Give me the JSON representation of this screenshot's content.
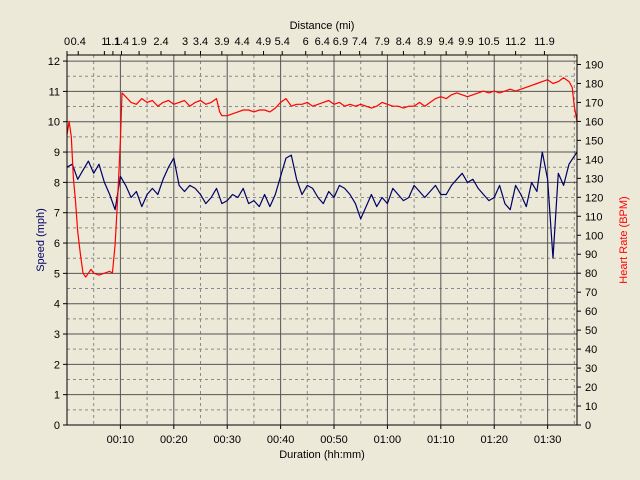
{
  "chart_data": {
    "type": "line",
    "xlabel": "Duration (hh:mm)",
    "x2label": "Distance (mi)",
    "ylabel": "Speed (mph)",
    "y2label": "Heart Rate (BPM)",
    "xlim_minutes": [
      0,
      95.5
    ],
    "ylim": [
      0,
      12.2
    ],
    "y2lim": [
      0,
      195
    ],
    "grid": true,
    "x_ticks": [
      {
        "min": 10,
        "label": "00:10"
      },
      {
        "min": 20,
        "label": "00:20"
      },
      {
        "min": 30,
        "label": "00:30"
      },
      {
        "min": 40,
        "label": "00:40"
      },
      {
        "min": 50,
        "label": "00:50"
      },
      {
        "min": 60,
        "label": "01:00"
      },
      {
        "min": 70,
        "label": "01:10"
      },
      {
        "min": 80,
        "label": "01:20"
      },
      {
        "min": 90,
        "label": "01:30"
      }
    ],
    "distance_ticks": [
      {
        "min": 0,
        "label": "0"
      },
      {
        "min": 2.1,
        "label": "0.4"
      },
      {
        "min": 7,
        "label": "1"
      },
      {
        "min": 8.6,
        "label": "1.1"
      },
      {
        "min": 10.2,
        "label": "1.4"
      },
      {
        "min": 13.5,
        "label": "1.9"
      },
      {
        "min": 17.6,
        "label": "2.4"
      },
      {
        "min": 22.1,
        "label": "3"
      },
      {
        "min": 25,
        "label": "3.4"
      },
      {
        "min": 29,
        "label": "3.9"
      },
      {
        "min": 32.8,
        "label": "4.4"
      },
      {
        "min": 36.8,
        "label": "4.9"
      },
      {
        "min": 40.3,
        "label": "5.4"
      },
      {
        "min": 44.7,
        "label": "6"
      },
      {
        "min": 47.8,
        "label": "6.4"
      },
      {
        "min": 51.2,
        "label": "6.9"
      },
      {
        "min": 54.8,
        "label": "7.4"
      },
      {
        "min": 59,
        "label": "7.9"
      },
      {
        "min": 63,
        "label": "8.4"
      },
      {
        "min": 67,
        "label": "8.9"
      },
      {
        "min": 71,
        "label": "9.4"
      },
      {
        "min": 74.7,
        "label": "9.9"
      },
      {
        "min": 79,
        "label": "10.5"
      },
      {
        "min": 84,
        "label": "11.2"
      },
      {
        "min": 89.4,
        "label": "11.9"
      }
    ],
    "y_ticks": [
      "0",
      "1",
      "2",
      "3",
      "4",
      "5",
      "6",
      "7",
      "8",
      "9",
      "10",
      "11",
      "12"
    ],
    "y2_ticks": [
      "0",
      "10",
      "20",
      "30",
      "40",
      "50",
      "60",
      "70",
      "80",
      "90",
      "100",
      "110",
      "120",
      "130",
      "140",
      "150",
      "160",
      "170",
      "180",
      "190"
    ],
    "series": [
      {
        "color": "#000066",
        "axis": "left",
        "points": [
          [
            0,
            8.5
          ],
          [
            1,
            8.6
          ],
          [
            2,
            8.1
          ],
          [
            3,
            8.4
          ],
          [
            4,
            8.7
          ],
          [
            5,
            8.3
          ],
          [
            6,
            8.6
          ],
          [
            7,
            8.0
          ],
          [
            8,
            7.6
          ],
          [
            9,
            7.1
          ],
          [
            10,
            8.2
          ],
          [
            11,
            7.9
          ],
          [
            12,
            7.5
          ],
          [
            13,
            7.7
          ],
          [
            14,
            7.2
          ],
          [
            15,
            7.6
          ],
          [
            16,
            7.8
          ],
          [
            17,
            7.6
          ],
          [
            18,
            8.1
          ],
          [
            19,
            8.5
          ],
          [
            20,
            8.8
          ],
          [
            21,
            7.9
          ],
          [
            22,
            7.7
          ],
          [
            23,
            7.9
          ],
          [
            24,
            7.8
          ],
          [
            25,
            7.6
          ],
          [
            26,
            7.3
          ],
          [
            27,
            7.5
          ],
          [
            28,
            7.8
          ],
          [
            29,
            7.3
          ],
          [
            30,
            7.4
          ],
          [
            31,
            7.6
          ],
          [
            32,
            7.5
          ],
          [
            33,
            7.8
          ],
          [
            34,
            7.3
          ],
          [
            35,
            7.4
          ],
          [
            36,
            7.2
          ],
          [
            37,
            7.6
          ],
          [
            38,
            7.2
          ],
          [
            39,
            7.6
          ],
          [
            40,
            8.2
          ],
          [
            41,
            8.8
          ],
          [
            42,
            8.9
          ],
          [
            43,
            8.1
          ],
          [
            44,
            7.6
          ],
          [
            45,
            7.9
          ],
          [
            46,
            7.8
          ],
          [
            47,
            7.5
          ],
          [
            48,
            7.3
          ],
          [
            49,
            7.7
          ],
          [
            50,
            7.5
          ],
          [
            51,
            7.9
          ],
          [
            52,
            7.8
          ],
          [
            53,
            7.6
          ],
          [
            54,
            7.3
          ],
          [
            55,
            6.8
          ],
          [
            56,
            7.2
          ],
          [
            57,
            7.6
          ],
          [
            58,
            7.2
          ],
          [
            59,
            7.5
          ],
          [
            60,
            7.3
          ],
          [
            61,
            7.8
          ],
          [
            62,
            7.6
          ],
          [
            63,
            7.4
          ],
          [
            64,
            7.5
          ],
          [
            65,
            7.9
          ],
          [
            66,
            7.7
          ],
          [
            67,
            7.5
          ],
          [
            68,
            7.7
          ],
          [
            69,
            7.9
          ],
          [
            70,
            7.6
          ],
          [
            71,
            7.6
          ],
          [
            72,
            7.9
          ],
          [
            73,
            8.1
          ],
          [
            74,
            8.3
          ],
          [
            75,
            8.0
          ],
          [
            76,
            8.1
          ],
          [
            77,
            7.8
          ],
          [
            78,
            7.6
          ],
          [
            79,
            7.4
          ],
          [
            80,
            7.5
          ],
          [
            81,
            7.9
          ],
          [
            82,
            7.3
          ],
          [
            83,
            7.1
          ],
          [
            84,
            7.9
          ],
          [
            85,
            7.6
          ],
          [
            86,
            7.2
          ],
          [
            87,
            8.0
          ],
          [
            88,
            7.7
          ],
          [
            89,
            9.0
          ],
          [
            90,
            8.1
          ],
          [
            91,
            5.5
          ],
          [
            92,
            8.3
          ],
          [
            93,
            7.9
          ],
          [
            94,
            8.6
          ],
          [
            95.5,
            9.0
          ]
        ]
      },
      {
        "color": "#ff0000",
        "axis": "right",
        "points": [
          [
            0,
            153
          ],
          [
            0.4,
            160
          ],
          [
            0.8,
            152
          ],
          [
            1.2,
            130
          ],
          [
            1.6,
            118
          ],
          [
            2,
            102
          ],
          [
            2.5,
            90
          ],
          [
            3,
            80
          ],
          [
            3.5,
            78
          ],
          [
            4,
            80
          ],
          [
            4.5,
            82
          ],
          [
            5,
            80
          ],
          [
            6,
            79
          ],
          [
            7,
            80
          ],
          [
            8,
            81
          ],
          [
            8.5,
            80
          ],
          [
            9,
            95
          ],
          [
            9.5,
            120
          ],
          [
            10,
            150
          ],
          [
            10.3,
            175
          ],
          [
            11,
            173
          ],
          [
            12,
            170
          ],
          [
            13,
            169
          ],
          [
            14,
            172
          ],
          [
            15,
            170
          ],
          [
            16,
            171
          ],
          [
            17,
            168
          ],
          [
            18,
            170
          ],
          [
            19,
            171
          ],
          [
            20,
            169
          ],
          [
            21,
            170
          ],
          [
            22,
            171
          ],
          [
            23,
            168
          ],
          [
            24,
            170
          ],
          [
            25,
            171
          ],
          [
            26,
            169
          ],
          [
            27,
            170
          ],
          [
            28,
            172
          ],
          [
            28.6,
            165
          ],
          [
            29,
            163
          ],
          [
            30,
            163
          ],
          [
            31,
            164
          ],
          [
            32,
            165
          ],
          [
            33,
            166
          ],
          [
            34,
            166
          ],
          [
            35,
            165
          ],
          [
            36,
            166
          ],
          [
            37,
            166
          ],
          [
            38,
            165
          ],
          [
            39,
            167
          ],
          [
            40,
            170
          ],
          [
            41,
            172
          ],
          [
            42,
            168
          ],
          [
            43,
            169
          ],
          [
            44,
            169
          ],
          [
            45,
            170
          ],
          [
            46,
            168
          ],
          [
            47,
            169
          ],
          [
            48,
            170
          ],
          [
            49,
            171
          ],
          [
            50,
            169
          ],
          [
            51,
            170
          ],
          [
            52,
            168
          ],
          [
            53,
            169
          ],
          [
            54,
            168
          ],
          [
            55,
            169
          ],
          [
            56,
            168
          ],
          [
            57,
            167
          ],
          [
            58,
            168
          ],
          [
            59,
            170
          ],
          [
            60,
            169
          ],
          [
            61,
            168
          ],
          [
            62,
            168
          ],
          [
            63,
            167
          ],
          [
            64,
            168
          ],
          [
            65,
            168
          ],
          [
            66,
            170
          ],
          [
            67,
            168
          ],
          [
            68,
            170
          ],
          [
            69,
            172
          ],
          [
            70,
            173
          ],
          [
            71,
            172
          ],
          [
            72,
            174
          ],
          [
            73,
            175
          ],
          [
            74,
            174
          ],
          [
            75,
            173
          ],
          [
            76,
            174
          ],
          [
            77,
            175
          ],
          [
            78,
            176
          ],
          [
            79,
            175
          ],
          [
            80,
            176
          ],
          [
            81,
            175
          ],
          [
            82,
            176
          ],
          [
            83,
            177
          ],
          [
            84,
            176
          ],
          [
            85,
            177
          ],
          [
            86,
            178
          ],
          [
            87,
            179
          ],
          [
            88,
            180
          ],
          [
            89,
            181
          ],
          [
            90,
            182
          ],
          [
            91,
            180
          ],
          [
            92,
            181
          ],
          [
            93,
            183
          ],
          [
            94,
            181
          ],
          [
            94.6,
            178
          ],
          [
            95,
            168
          ],
          [
            95.5,
            160
          ]
        ]
      }
    ]
  }
}
